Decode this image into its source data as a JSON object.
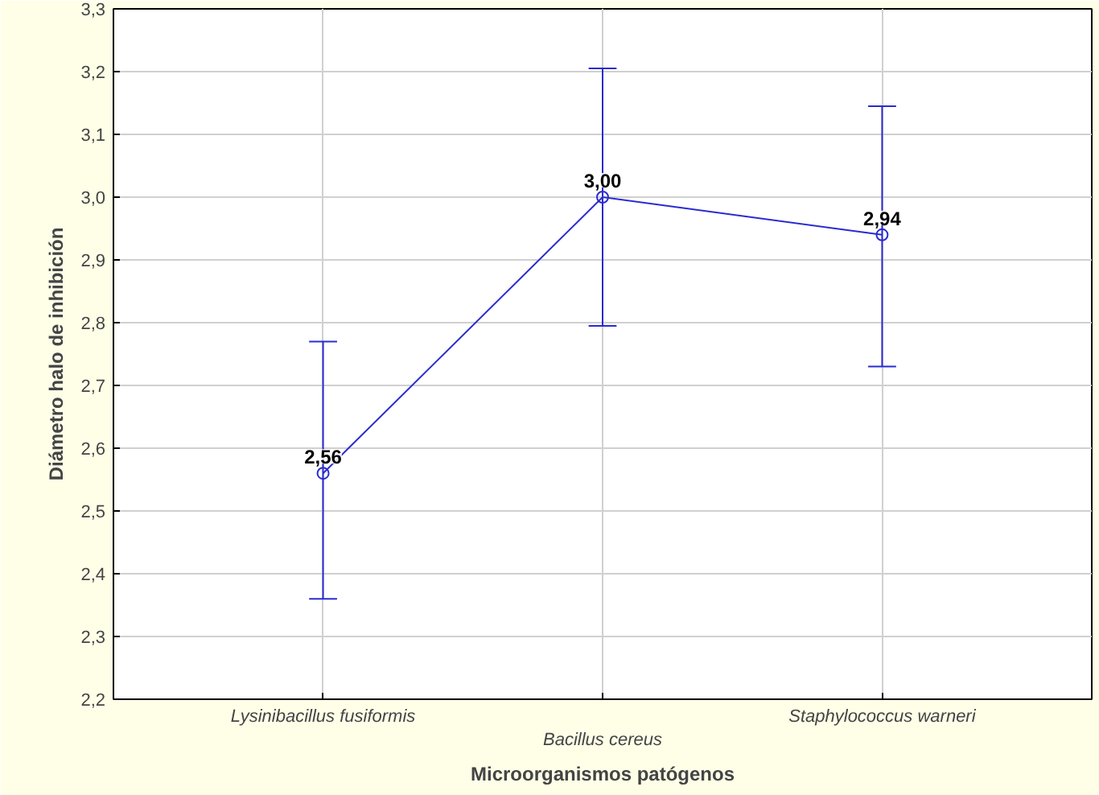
{
  "chart_data": {
    "type": "line",
    "xlabel": "Microorganismos patógenos",
    "ylabel": "Diámetro halo de inhibición",
    "categories": [
      "Lysinibacillus fusiformis",
      "Bacillus cereus",
      "Staphylococcus warneri"
    ],
    "series": [
      {
        "color": "#2b2bd0",
        "values": [
          2.56,
          3.0,
          2.94
        ],
        "errors": [
          [
            2.36,
            2.77
          ],
          [
            2.795,
            3.205
          ],
          [
            2.73,
            3.145
          ]
        ],
        "value_labels": [
          "2,56",
          "3,00",
          "2,94"
        ]
      }
    ],
    "ylim": [
      2.2,
      3.3
    ],
    "yticks": [
      {
        "value": 2.2,
        "label": "2,2"
      },
      {
        "value": 2.3,
        "label": "2,3"
      },
      {
        "value": 2.4,
        "label": "2,4"
      },
      {
        "value": 2.5,
        "label": "2,5"
      },
      {
        "value": 2.6,
        "label": "2,6"
      },
      {
        "value": 2.7,
        "label": "2,7"
      },
      {
        "value": 2.8,
        "label": "2,8"
      },
      {
        "value": 2.9,
        "label": "2,9"
      },
      {
        "value": 3.0,
        "label": "3,0"
      },
      {
        "value": 3.1,
        "label": "3,1"
      },
      {
        "value": 3.2,
        "label": "3,2"
      },
      {
        "value": 3.3,
        "label": "3,3"
      }
    ],
    "grid": true,
    "marker": "circle",
    "line_style": "solid"
  }
}
